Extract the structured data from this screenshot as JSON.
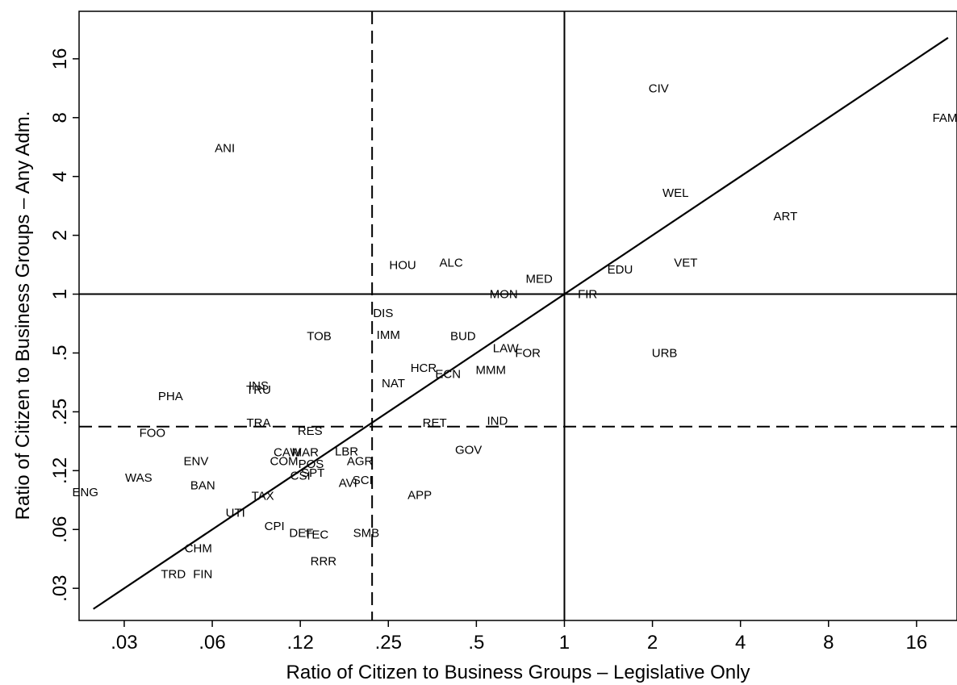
{
  "chart_data": {
    "type": "scatter",
    "title": "",
    "xlabel": "Ratio of Citizen to Business Groups – Legislative Only",
    "ylabel": "Ratio of Citizen to Business Groups – Any Adm.",
    "scale": "log2",
    "xlim": [
      0.0219,
      22
    ],
    "ylim": [
      0.0214,
      28
    ],
    "x_ticks": [
      {
        "value": 0.03125,
        "label": ".03"
      },
      {
        "value": 0.0625,
        "label": ".06"
      },
      {
        "value": 0.125,
        "label": ".12"
      },
      {
        "value": 0.25,
        "label": ".25"
      },
      {
        "value": 0.5,
        "label": ".5"
      },
      {
        "value": 1,
        "label": "1"
      },
      {
        "value": 2,
        "label": "2"
      },
      {
        "value": 4,
        "label": "4"
      },
      {
        "value": 8,
        "label": "8"
      },
      {
        "value": 16,
        "label": "16"
      }
    ],
    "y_ticks": [
      {
        "value": 0.03125,
        "label": ".03"
      },
      {
        "value": 0.0625,
        "label": ".06"
      },
      {
        "value": 0.125,
        "label": ".12"
      },
      {
        "value": 0.25,
        "label": ".25"
      },
      {
        "value": 0.5,
        "label": ".5"
      },
      {
        "value": 1,
        "label": "1"
      },
      {
        "value": 2,
        "label": "2"
      },
      {
        "value": 4,
        "label": "4"
      },
      {
        "value": 8,
        "label": "8"
      },
      {
        "value": 16,
        "label": "16"
      }
    ],
    "reference_lines": {
      "solid_vertical_x": 1,
      "solid_horizontal_y": 1,
      "dashed_vertical_x": 0.22,
      "dashed_horizontal_y": 0.21,
      "diagonal_y_equals_x": true
    },
    "grid": false,
    "legend": "none",
    "points": [
      {
        "label": "CIV",
        "x": 2.1,
        "y": 11.3
      },
      {
        "label": "FAM",
        "x": 20,
        "y": 8.0
      },
      {
        "label": "ANI",
        "x": 0.069,
        "y": 5.6
      },
      {
        "label": "WEL",
        "x": 2.4,
        "y": 3.3
      },
      {
        "label": "ART",
        "x": 5.7,
        "y": 2.5
      },
      {
        "label": "HOU",
        "x": 0.28,
        "y": 1.41
      },
      {
        "label": "ALC",
        "x": 0.41,
        "y": 1.45
      },
      {
        "label": "VET",
        "x": 2.6,
        "y": 1.45
      },
      {
        "label": "EDU",
        "x": 1.55,
        "y": 1.34
      },
      {
        "label": "MED",
        "x": 0.82,
        "y": 1.2
      },
      {
        "label": "MON",
        "x": 0.62,
        "y": 1.0
      },
      {
        "label": "FIR",
        "x": 1.2,
        "y": 1.0
      },
      {
        "label": "DIS",
        "x": 0.24,
        "y": 0.8
      },
      {
        "label": "TOB",
        "x": 0.145,
        "y": 0.61
      },
      {
        "label": "IMM",
        "x": 0.25,
        "y": 0.62
      },
      {
        "label": "BUD",
        "x": 0.45,
        "y": 0.61
      },
      {
        "label": "LAW",
        "x": 0.63,
        "y": 0.53
      },
      {
        "label": "FOR",
        "x": 0.75,
        "y": 0.5
      },
      {
        "label": "URB",
        "x": 2.2,
        "y": 0.5
      },
      {
        "label": "HCR",
        "x": 0.33,
        "y": 0.42
      },
      {
        "label": "ECN",
        "x": 0.4,
        "y": 0.39
      },
      {
        "label": "MMM",
        "x": 0.56,
        "y": 0.41
      },
      {
        "label": "NAT",
        "x": 0.26,
        "y": 0.35
      },
      {
        "label": "INS",
        "x": 0.09,
        "y": 0.34
      },
      {
        "label": "TRU",
        "x": 0.09,
        "y": 0.325
      },
      {
        "label": "PHA",
        "x": 0.045,
        "y": 0.3
      },
      {
        "label": "TRA",
        "x": 0.09,
        "y": 0.22
      },
      {
        "label": "RES",
        "x": 0.135,
        "y": 0.2
      },
      {
        "label": "RET",
        "x": 0.36,
        "y": 0.22
      },
      {
        "label": "IND",
        "x": 0.59,
        "y": 0.225
      },
      {
        "label": "FOO",
        "x": 0.039,
        "y": 0.195
      },
      {
        "label": "GOV",
        "x": 0.47,
        "y": 0.16
      },
      {
        "label": "CAW",
        "x": 0.113,
        "y": 0.155
      },
      {
        "label": "MAR",
        "x": 0.13,
        "y": 0.155
      },
      {
        "label": "LBR",
        "x": 0.18,
        "y": 0.157
      },
      {
        "label": "ENV",
        "x": 0.055,
        "y": 0.14
      },
      {
        "label": "COM",
        "x": 0.11,
        "y": 0.14
      },
      {
        "label": "POS",
        "x": 0.136,
        "y": 0.135
      },
      {
        "label": "AGR",
        "x": 0.2,
        "y": 0.14
      },
      {
        "label": "SPT",
        "x": 0.138,
        "y": 0.122
      },
      {
        "label": "CSI",
        "x": 0.125,
        "y": 0.118
      },
      {
        "label": "WAS",
        "x": 0.035,
        "y": 0.115
      },
      {
        "label": "BAN",
        "x": 0.058,
        "y": 0.105
      },
      {
        "label": "AVI",
        "x": 0.182,
        "y": 0.108
      },
      {
        "label": "SCI",
        "x": 0.204,
        "y": 0.112
      },
      {
        "label": "TAX",
        "x": 0.093,
        "y": 0.093
      },
      {
        "label": "APP",
        "x": 0.32,
        "y": 0.094
      },
      {
        "label": "ENG",
        "x": 0.023,
        "y": 0.097
      },
      {
        "label": "UTI",
        "x": 0.075,
        "y": 0.076
      },
      {
        "label": "CPI",
        "x": 0.102,
        "y": 0.065
      },
      {
        "label": "DEF",
        "x": 0.126,
        "y": 0.06
      },
      {
        "label": "TEC",
        "x": 0.142,
        "y": 0.059
      },
      {
        "label": "SMB",
        "x": 0.21,
        "y": 0.06
      },
      {
        "label": "CHM",
        "x": 0.056,
        "y": 0.05
      },
      {
        "label": "RRR",
        "x": 0.15,
        "y": 0.043
      },
      {
        "label": "TRD",
        "x": 0.046,
        "y": 0.037
      },
      {
        "label": "FIN",
        "x": 0.058,
        "y": 0.037
      }
    ]
  }
}
